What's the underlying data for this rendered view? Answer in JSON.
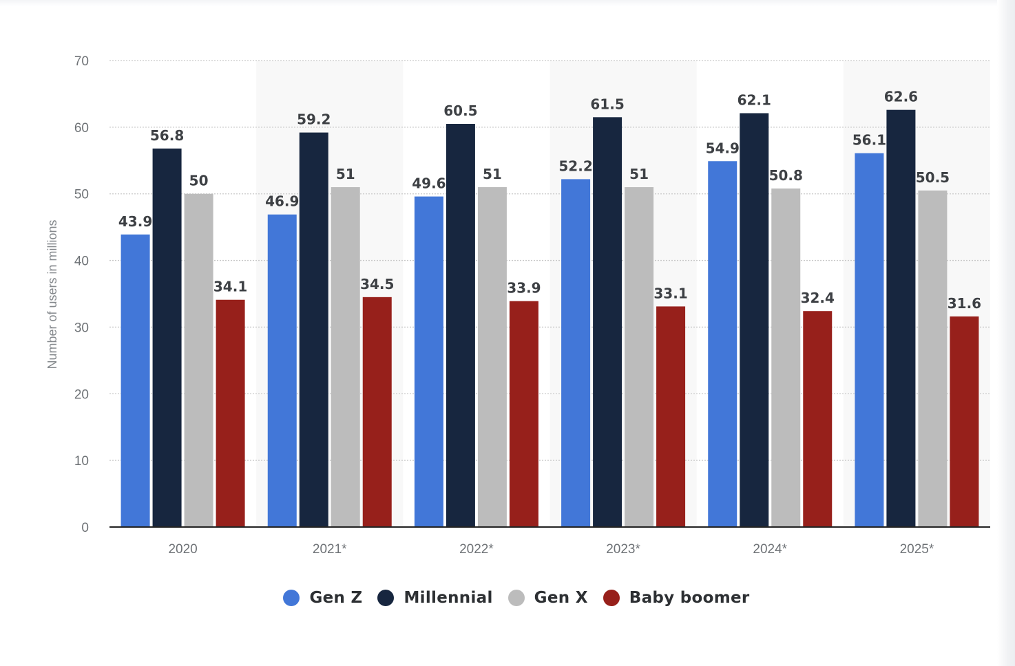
{
  "chart_data": {
    "type": "bar",
    "categories": [
      "2020",
      "2021*",
      "2022*",
      "2023*",
      "2024*",
      "2025*"
    ],
    "series": [
      {
        "name": "Gen Z",
        "color": "#4277d8",
        "values": [
          43.9,
          46.9,
          49.6,
          52.2,
          54.9,
          56.1
        ]
      },
      {
        "name": "Millennial",
        "color": "#17263f",
        "values": [
          56.8,
          59.2,
          60.5,
          61.5,
          62.1,
          62.6
        ]
      },
      {
        "name": "Gen X",
        "color": "#bcbcbc",
        "values": [
          50,
          51,
          51,
          51,
          50.8,
          50.5
        ]
      },
      {
        "name": "Baby boomer",
        "color": "#97201b",
        "values": [
          34.1,
          34.5,
          33.9,
          33.1,
          32.4,
          31.6
        ]
      }
    ],
    "value_labels": [
      [
        "43.9",
        "46.9",
        "49.6",
        "52.2",
        "54.9",
        "56.1"
      ],
      [
        "56.8",
        "59.2",
        "60.5",
        "61.5",
        "62.1",
        "62.6"
      ],
      [
        "50",
        "51",
        "51",
        "51",
        "50.8",
        "50.5"
      ],
      [
        "34.1",
        "34.5",
        "33.9",
        "33.1",
        "32.4",
        "31.6"
      ]
    ],
    "ylabel": "Number of users in millions",
    "xlabel": "",
    "ylim": [
      0,
      70
    ],
    "yticks": [
      "0",
      "10",
      "20",
      "30",
      "40",
      "50",
      "60",
      "70"
    ],
    "grid": true,
    "alternating_band_color": "#f8f8f8",
    "legend_position": "bottom-center"
  }
}
